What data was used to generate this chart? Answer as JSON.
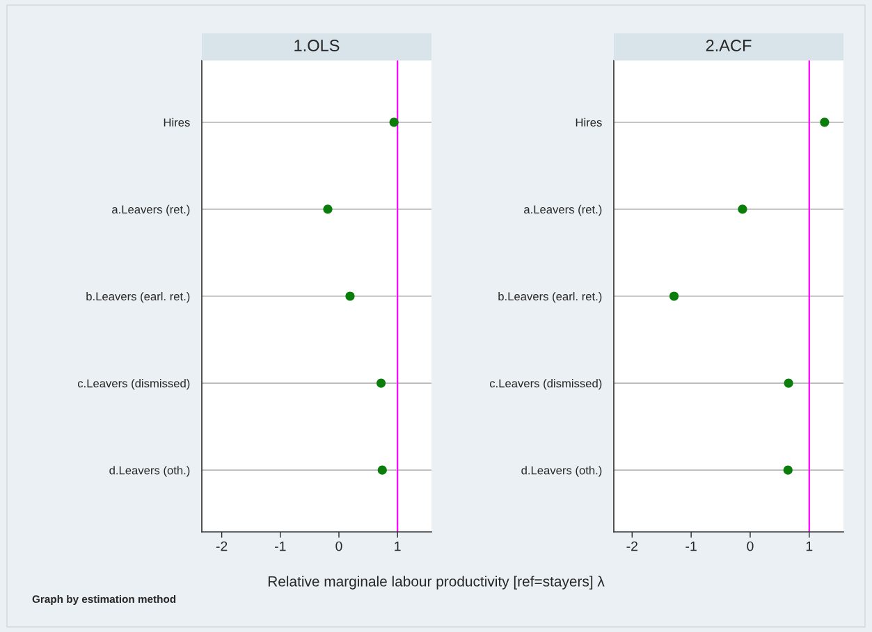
{
  "chart_data": [
    {
      "type": "scatter",
      "title": "1.OLS",
      "categories": [
        "Hires",
        "a.Leavers (ret.)",
        "b.Leavers (earl. ret.)",
        "c.Leavers (dismissed)",
        "d.Leavers (oth.)"
      ],
      "orientation": "horizontal",
      "series": [
        {
          "color": "#0b7d0b",
          "values": [
            0.94,
            -0.19,
            0.19,
            0.72,
            0.74
          ]
        }
      ],
      "xlim": [
        -2.34,
        1.58
      ],
      "xticks": [
        -2,
        -1,
        0,
        1
      ],
      "ref_lines": [
        {
          "axis": "x",
          "value": 1,
          "color": "#ff00ff"
        }
      ],
      "grid": "y",
      "marker": "circle",
      "legend": false,
      "xlabel": "Relative marginale labour productivity [ref=stayers] λ",
      "annotations": [
        "Graph by estimation method"
      ]
    },
    {
      "type": "scatter",
      "title": "2.ACF",
      "categories": [
        "Hires",
        "a.Leavers (ret.)",
        "b.Leavers (earl. ret.)",
        "c.Leavers (dismissed)",
        "d.Leavers (oth.)"
      ],
      "orientation": "horizontal",
      "series": [
        {
          "color": "#0b7d0b",
          "values": [
            1.26,
            -0.13,
            -1.29,
            0.65,
            0.64
          ]
        }
      ],
      "xlim": [
        -2.31,
        1.58
      ],
      "xticks": [
        -2,
        -1,
        0,
        1
      ],
      "ref_lines": [
        {
          "axis": "x",
          "value": 1,
          "color": "#ff00ff"
        }
      ],
      "grid": "y",
      "marker": "circle",
      "legend": false
    }
  ]
}
